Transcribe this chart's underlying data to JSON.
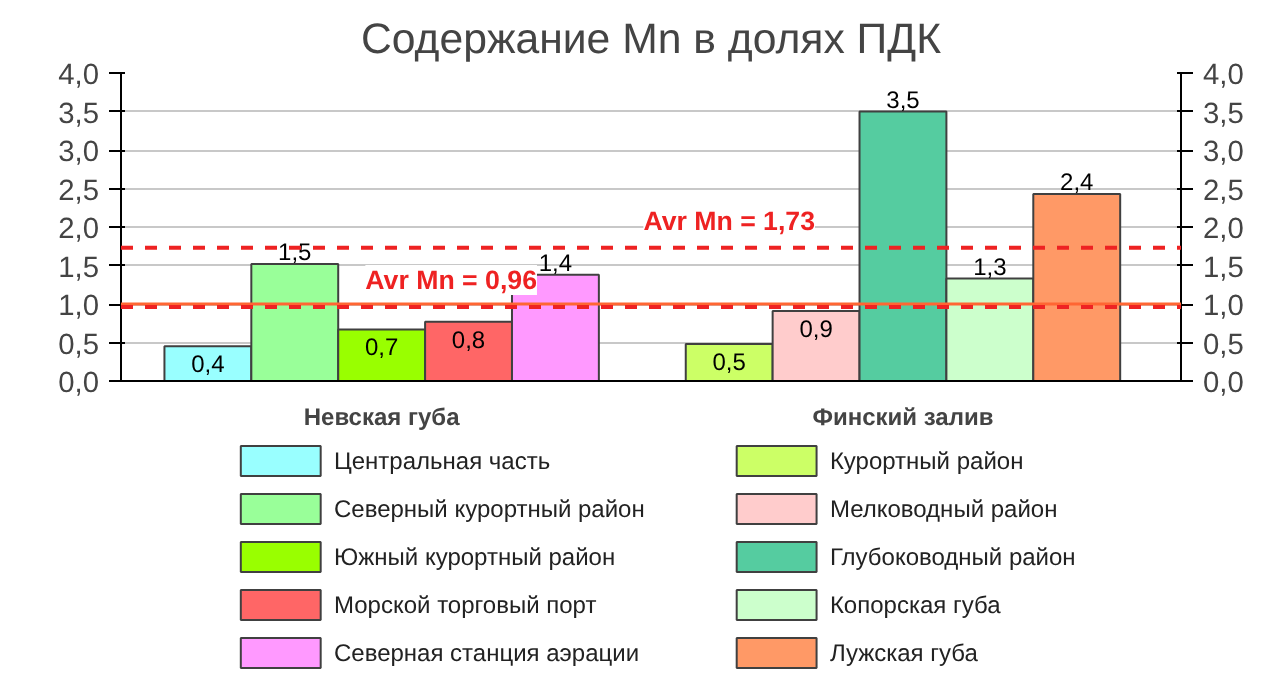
{
  "chart_data": {
    "type": "bar",
    "title": "Содержание Mn в долях ПДК",
    "categories": [
      "Невская губа",
      "Финский залив"
    ],
    "series": [
      {
        "name": "Центральная часть",
        "color": "#99ffff",
        "values": [
          0.45,
          null
        ],
        "value_labels": [
          "0,4",
          null
        ]
      },
      {
        "name": "Северный курортный район",
        "color": "#99ff99",
        "values": [
          1.52,
          null
        ],
        "value_labels": [
          "1,5",
          null
        ]
      },
      {
        "name": "Южный курортный район",
        "color": "#99ff00",
        "values": [
          0.67,
          null
        ],
        "value_labels": [
          "0,7",
          null
        ]
      },
      {
        "name": "Морской торговый порт",
        "color": "#ff6666",
        "values": [
          0.77,
          null
        ],
        "value_labels": [
          "0,8",
          null
        ]
      },
      {
        "name": "Северная станция аэрации",
        "color": "#ff99ff",
        "values": [
          1.38,
          null
        ],
        "value_labels": [
          "1,4",
          null
        ]
      },
      {
        "name": "Курортный район",
        "color": "#ccff66",
        "values": [
          null,
          0.48
        ],
        "value_labels": [
          null,
          "0,5"
        ]
      },
      {
        "name": "Мелководный район",
        "color": "#ffcccc",
        "values": [
          null,
          0.91
        ],
        "value_labels": [
          null,
          "0,9"
        ]
      },
      {
        "name": "Глубоководный район",
        "color": "#55cca0",
        "values": [
          null,
          3.5
        ],
        "value_labels": [
          null,
          "3,5"
        ]
      },
      {
        "name": "Копорская губа",
        "color": "#ccffcc",
        "values": [
          null,
          1.33
        ],
        "value_labels": [
          null,
          "1,3"
        ]
      },
      {
        "name": "Лужская губа",
        "color": "#ff9966",
        "values": [
          null,
          2.43
        ],
        "value_labels": [
          null,
          "2,4"
        ]
      }
    ],
    "ylim": [
      0,
      4
    ],
    "yticks": [
      {
        "value": 0,
        "label": "0,0"
      },
      {
        "value": 0.5,
        "label": "0,5"
      },
      {
        "value": 1,
        "label": "1,0"
      },
      {
        "value": 1.5,
        "label": "1,5"
      },
      {
        "value": 2,
        "label": "2,0"
      },
      {
        "value": 2.5,
        "label": "2,5"
      },
      {
        "value": 3,
        "label": "3,0"
      },
      {
        "value": 3.5,
        "label": "3,5"
      },
      {
        "value": 4,
        "label": "4,0"
      }
    ],
    "y2lim": [
      0,
      4
    ],
    "y2ticks": [
      {
        "value": 0,
        "label": "0,0"
      },
      {
        "value": 0.5,
        "label": "0,5"
      },
      {
        "value": 1,
        "label": "1,0"
      },
      {
        "value": 1.5,
        "label": "1,5"
      },
      {
        "value": 2,
        "label": "2,0"
      },
      {
        "value": 2.5,
        "label": "2,5"
      },
      {
        "value": 3,
        "label": "3,0"
      },
      {
        "value": 3.5,
        "label": "3,5"
      },
      {
        "value": 4,
        "label": "4,0"
      }
    ],
    "ref_lines": [
      {
        "axis": "y",
        "value": 1,
        "color": "#ff6633",
        "line_style": "solid"
      },
      {
        "axis": "y",
        "value": 0.96,
        "label": "Avr Mn = 0,96",
        "color": "#ee2222",
        "line_style": "dashed"
      },
      {
        "axis": "y",
        "value": 1.73,
        "label": "Avr Mn = 1,73",
        "color": "#ee2222",
        "line_style": "dashed"
      }
    ],
    "grid": "y",
    "legend": "bottom"
  }
}
